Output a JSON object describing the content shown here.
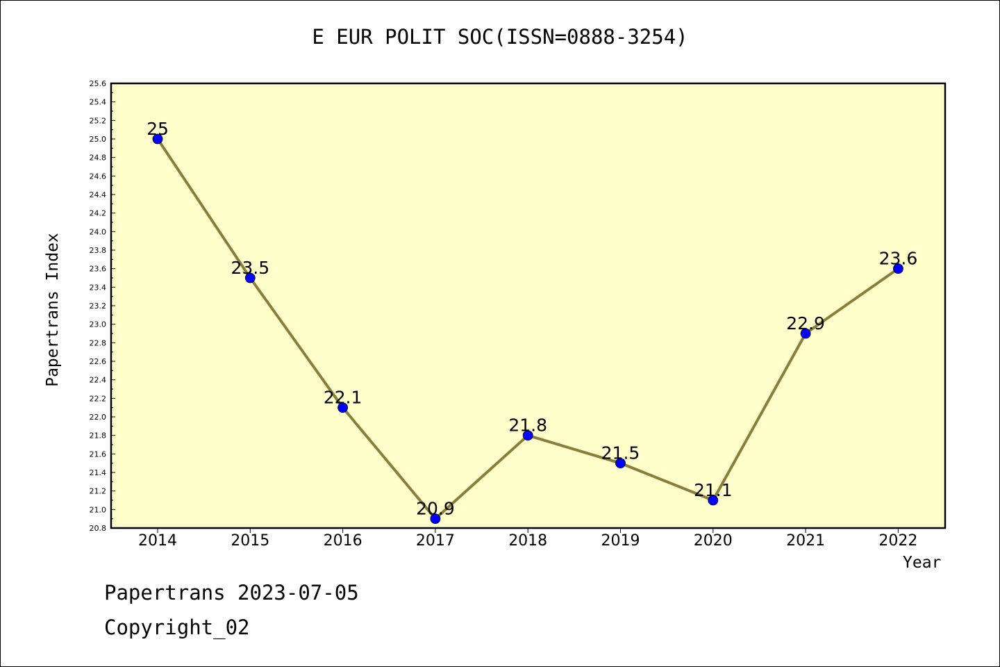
{
  "chart_data": {
    "type": "line",
    "title": "E EUR POLIT SOC(ISSN=0888-3254)",
    "xlabel": "Year",
    "ylabel": "Papertrans Index",
    "categories": [
      "2014",
      "2015",
      "2016",
      "2017",
      "2018",
      "2019",
      "2020",
      "2021",
      "2022"
    ],
    "values": [
      25,
      23.5,
      22.1,
      20.9,
      21.8,
      21.5,
      21.1,
      22.9,
      23.6
    ],
    "data_labels": [
      "25",
      "23.5",
      "22.1",
      "20.9",
      "21.8",
      "21.5",
      "21.1",
      "22.9",
      "23.6"
    ],
    "ylim": [
      20.8,
      25.6
    ],
    "y_ticks": [
      "20.8",
      "21.0",
      "21.2",
      "21.4",
      "21.6",
      "21.8",
      "22.0",
      "22.2",
      "22.4",
      "22.6",
      "22.8",
      "23.0",
      "23.2",
      "23.4",
      "23.6",
      "23.8",
      "24.0",
      "24.2",
      "24.4",
      "24.6",
      "24.8",
      "25.0",
      "25.2",
      "25.4",
      "25.6"
    ],
    "grid": false,
    "colors": {
      "plot_background": "#ffffcc",
      "line": "#8b7d3a",
      "marker": "#0000ff"
    }
  },
  "footer": {
    "line1": "Papertrans 2023-07-05",
    "line2": "Copyright_02"
  }
}
